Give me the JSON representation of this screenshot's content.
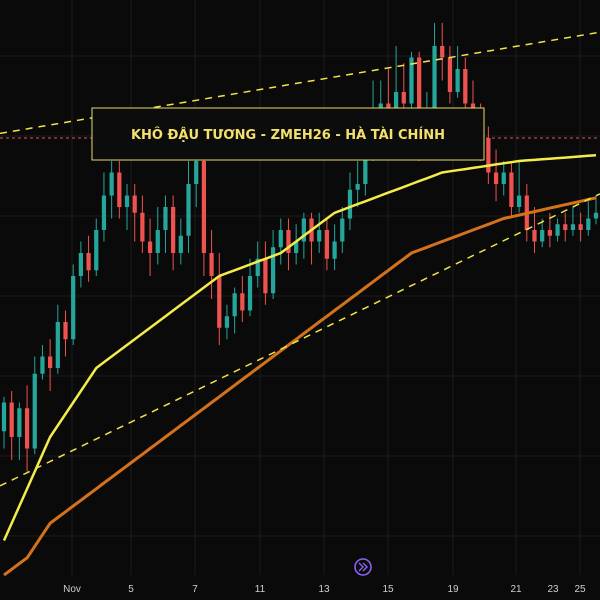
{
  "chart_data": {
    "type": "candlestick",
    "title": "KHÔ ĐẬU TƯƠNG - ZMEH26 - HÀ TÀI CHÍNH",
    "x_ticks": [
      "Nov",
      "5",
      "7",
      "11",
      "13",
      "15",
      "19",
      "21",
      "23",
      "25"
    ],
    "grid": true,
    "y_range": [
      0,
      100
    ],
    "colors": {
      "background": "#0a0a0a",
      "grid": "#1c1c1c",
      "up": "#26a69a",
      "down": "#ef5350",
      "ma_fast": "#f5ec4a",
      "ma_slow": "#d3711c",
      "channel": "#f2e34a",
      "level_line": "#e0534f",
      "title_text": "#f4e06b",
      "title_border": "#e8d96a",
      "nav_button": "#8a63f5"
    },
    "candles": [
      [
        25,
        30,
        31,
        22
      ],
      [
        30,
        24,
        32,
        20
      ],
      [
        24,
        29,
        30,
        20
      ],
      [
        29,
        22,
        33,
        18
      ],
      [
        22,
        35,
        38,
        21
      ],
      [
        35,
        38,
        40,
        34
      ],
      [
        38,
        36,
        41,
        32
      ],
      [
        36,
        44,
        47,
        35
      ],
      [
        44,
        41,
        46,
        38
      ],
      [
        41,
        52,
        54,
        40
      ],
      [
        52,
        56,
        58,
        50
      ],
      [
        56,
        53,
        59,
        51
      ],
      [
        53,
        60,
        62,
        52
      ],
      [
        60,
        66,
        70,
        58
      ],
      [
        66,
        70,
        72,
        62
      ],
      [
        70,
        64,
        72,
        62
      ],
      [
        64,
        66,
        68,
        60
      ],
      [
        66,
        63,
        68,
        58
      ],
      [
        63,
        58,
        66,
        56
      ],
      [
        58,
        56,
        62,
        52
      ],
      [
        56,
        60,
        64,
        54
      ],
      [
        60,
        64,
        66,
        56
      ],
      [
        64,
        56,
        66,
        53
      ],
      [
        56,
        59,
        62,
        54
      ],
      [
        59,
        68,
        72,
        56
      ],
      [
        68,
        72,
        74,
        64
      ],
      [
        72,
        56,
        73,
        52
      ],
      [
        56,
        52,
        60,
        48
      ],
      [
        52,
        43,
        56,
        40
      ],
      [
        43,
        45,
        47,
        41
      ],
      [
        45,
        49,
        50,
        42
      ],
      [
        49,
        46,
        52,
        44
      ],
      [
        46,
        52,
        55,
        45
      ],
      [
        52,
        55,
        58,
        50
      ],
      [
        55,
        49,
        58,
        47
      ],
      [
        49,
        57,
        60,
        48
      ],
      [
        57,
        60,
        62,
        54
      ],
      [
        60,
        56,
        62,
        53
      ],
      [
        56,
        58,
        61,
        54
      ],
      [
        58,
        62,
        63,
        55
      ],
      [
        62,
        58,
        63,
        54
      ],
      [
        58,
        60,
        63,
        56
      ],
      [
        60,
        55,
        62,
        53
      ],
      [
        55,
        58,
        61,
        53
      ],
      [
        58,
        62,
        64,
        56
      ],
      [
        62,
        67,
        70,
        60
      ],
      [
        67,
        68,
        72,
        64
      ],
      [
        68,
        74,
        76,
        66
      ],
      [
        74,
        78,
        86,
        72
      ],
      [
        78,
        82,
        86,
        76
      ],
      [
        82,
        80,
        88,
        77
      ],
      [
        80,
        84,
        92,
        79
      ],
      [
        84,
        82,
        89,
        80
      ],
      [
        82,
        90,
        91,
        81
      ],
      [
        90,
        74,
        91,
        72
      ],
      [
        74,
        80,
        84,
        73
      ],
      [
        80,
        92,
        96,
        79
      ],
      [
        92,
        90,
        96,
        86
      ],
      [
        90,
        84,
        92,
        82
      ],
      [
        84,
        88,
        92,
        83
      ],
      [
        88,
        82,
        90,
        80
      ],
      [
        82,
        78,
        86,
        76
      ],
      [
        78,
        76,
        82,
        72
      ],
      [
        76,
        70,
        78,
        68
      ],
      [
        70,
        68,
        74,
        65
      ],
      [
        68,
        70,
        72,
        66
      ],
      [
        70,
        64,
        72,
        62
      ],
      [
        64,
        66,
        72,
        63
      ],
      [
        66,
        60,
        68,
        58
      ],
      [
        60,
        58,
        64,
        56
      ],
      [
        58,
        60,
        62,
        57
      ],
      [
        60,
        59,
        63,
        57
      ],
      [
        59,
        61,
        62,
        58
      ],
      [
        61,
        60,
        63,
        58
      ],
      [
        60,
        61,
        64,
        59
      ],
      [
        61,
        60,
        63,
        58
      ],
      [
        60,
        62,
        65,
        59
      ],
      [
        62,
        63,
        66,
        61
      ]
    ],
    "ma_fast": [
      6,
      9,
      12,
      15,
      18,
      21,
      24,
      26,
      28,
      30,
      32,
      34,
      36,
      37,
      38,
      39,
      40,
      41,
      42,
      43,
      44,
      45,
      46,
      47,
      48,
      49,
      50,
      51,
      52,
      52.5,
      53,
      53.5,
      54,
      54.5,
      55,
      55.5,
      56,
      57,
      58,
      59,
      60,
      61,
      62,
      63,
      63.5,
      64,
      64.5,
      65,
      65.5,
      66,
      66.5,
      67,
      67.5,
      68,
      68.5,
      69,
      69.5,
      70,
      70.2,
      70.4,
      70.6,
      70.8,
      71,
      71.2,
      71.4,
      71.6,
      71.8,
      72,
      72.1,
      72.2,
      72.3,
      72.4,
      72.5,
      72.6,
      72.7,
      72.8,
      72.9,
      73
    ],
    "ma_slow": [
      0,
      1,
      2,
      3,
      5,
      7,
      9,
      10,
      11,
      12,
      13,
      14,
      15,
      16,
      17,
      18,
      19,
      20,
      21,
      22,
      23,
      24,
      25,
      26,
      27,
      28,
      29,
      30,
      31,
      32,
      33,
      34,
      35,
      36,
      37,
      38,
      39,
      40,
      41,
      42,
      43,
      44,
      45,
      46,
      47,
      48,
      49,
      50,
      51,
      52,
      53,
      54,
      55,
      56,
      56.5,
      57,
      57.5,
      58,
      58.5,
      59,
      59.5,
      60,
      60.5,
      61,
      61.5,
      62,
      62.3,
      62.6,
      62.9,
      63.2,
      63.5,
      63.8,
      64.1,
      64.4,
      64.7,
      65,
      65.3,
      65.6
    ]
  }
}
